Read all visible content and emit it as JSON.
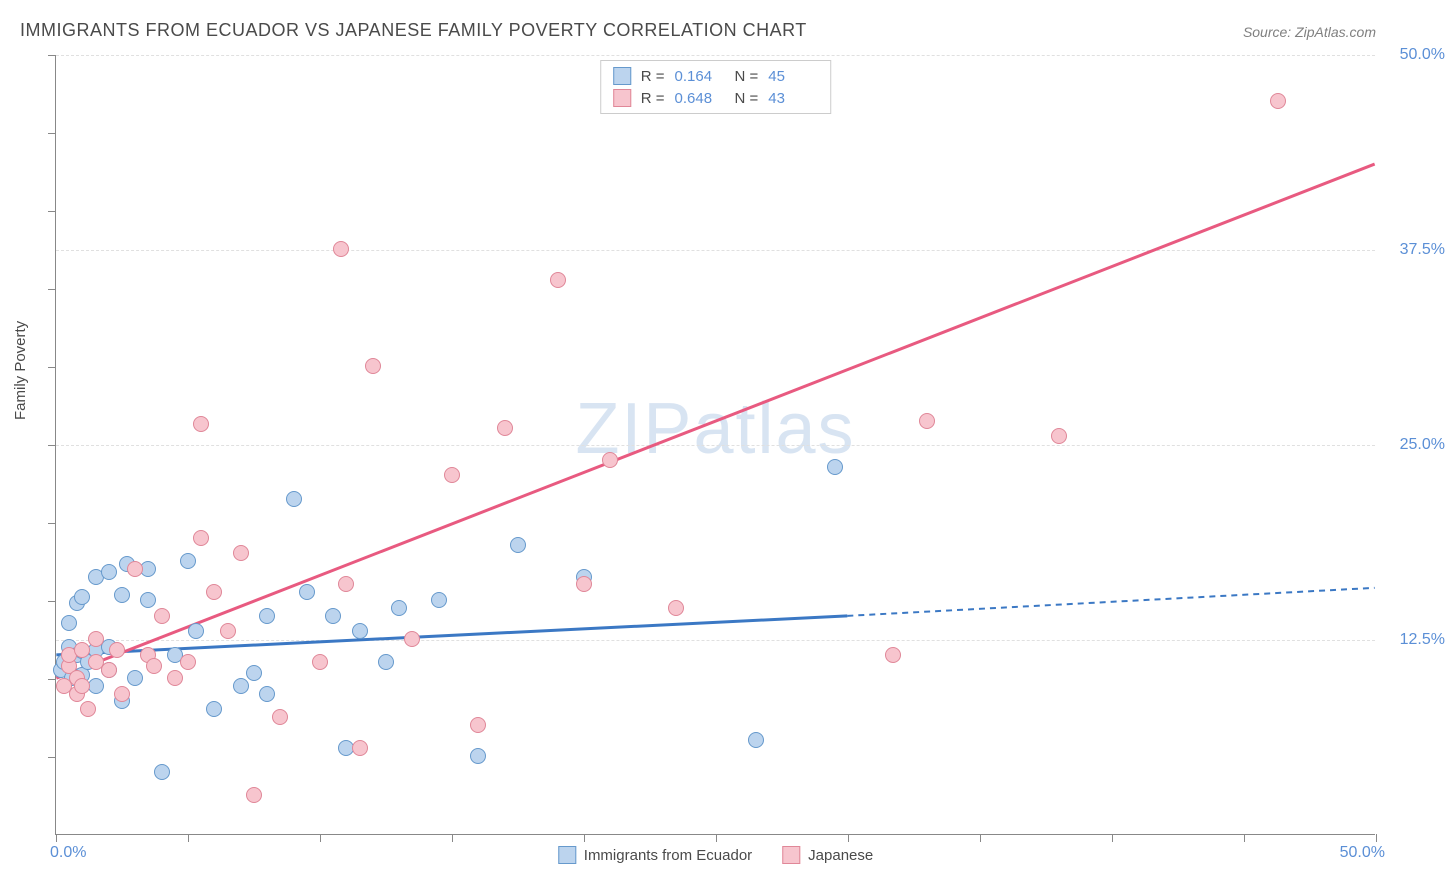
{
  "title": "IMMIGRANTS FROM ECUADOR VS JAPANESE FAMILY POVERTY CORRELATION CHART",
  "source": "Source: ZipAtlas.com",
  "ylabel": "Family Poverty",
  "watermark": "ZIPatlas",
  "chart": {
    "type": "scatter",
    "xlim": [
      0,
      50
    ],
    "ylim": [
      0,
      50
    ],
    "x_axis_labels": {
      "min": "0.0%",
      "max": "50.0%"
    },
    "y_ticks": [
      12.5,
      25.0,
      37.5,
      50.0
    ],
    "y_tick_labels": [
      "12.5%",
      "25.0%",
      "37.5%",
      "50.0%"
    ],
    "x_tick_positions": [
      0,
      5,
      10,
      15,
      20,
      25,
      30,
      35,
      40,
      45,
      50
    ],
    "y_minor_ticks": [
      5,
      10,
      15,
      20,
      25,
      30,
      35,
      40,
      45,
      50
    ],
    "grid_color": "#e0e0e0",
    "axis_color": "#888888",
    "background_color": "#ffffff",
    "marker_size": 16,
    "series": [
      {
        "name": "Immigrants from Ecuador",
        "fill": "#bcd4ee",
        "stroke": "#6699cc",
        "line_color": "#3b78c4",
        "line_width": 3,
        "R": "0.164",
        "N": "45",
        "regression": {
          "x1": 0,
          "y1": 11.5,
          "x2": 30,
          "y2": 14.0,
          "dash_x2": 50,
          "dash_y2": 15.8
        },
        "points": [
          [
            0.2,
            10.5
          ],
          [
            0.3,
            11.0
          ],
          [
            0.5,
            12.0
          ],
          [
            0.5,
            13.5
          ],
          [
            0.6,
            10.0
          ],
          [
            0.8,
            11.5
          ],
          [
            0.8,
            14.8
          ],
          [
            1.0,
            10.2
          ],
          [
            1.0,
            11.7
          ],
          [
            1.0,
            15.2
          ],
          [
            1.2,
            11.0
          ],
          [
            1.5,
            9.5
          ],
          [
            1.5,
            11.8
          ],
          [
            1.5,
            16.5
          ],
          [
            2.0,
            10.5
          ],
          [
            2.0,
            12.0
          ],
          [
            2.0,
            16.8
          ],
          [
            2.5,
            8.5
          ],
          [
            2.5,
            15.3
          ],
          [
            2.7,
            17.3
          ],
          [
            3.0,
            10.0
          ],
          [
            3.5,
            15.0
          ],
          [
            3.5,
            17.0
          ],
          [
            4.0,
            4.0
          ],
          [
            4.5,
            11.5
          ],
          [
            5.0,
            17.5
          ],
          [
            5.3,
            13.0
          ],
          [
            6.0,
            8.0
          ],
          [
            7.0,
            9.5
          ],
          [
            7.5,
            10.3
          ],
          [
            8.0,
            14.0
          ],
          [
            8.0,
            9.0
          ],
          [
            9.0,
            21.5
          ],
          [
            9.5,
            15.5
          ],
          [
            10.5,
            14.0
          ],
          [
            11.0,
            5.5
          ],
          [
            11.5,
            13.0
          ],
          [
            12.5,
            11.0
          ],
          [
            13.0,
            14.5
          ],
          [
            14.5,
            15.0
          ],
          [
            16.0,
            5.0
          ],
          [
            17.5,
            18.5
          ],
          [
            20.0,
            16.5
          ],
          [
            26.5,
            6.0
          ],
          [
            29.5,
            23.5
          ]
        ]
      },
      {
        "name": "Japanese",
        "fill": "#f7c5ce",
        "stroke": "#e08798",
        "line_color": "#e85a80",
        "line_width": 3,
        "R": "0.648",
        "N": "43",
        "regression": {
          "x1": 0,
          "y1": 10.0,
          "x2": 50,
          "y2": 43.0
        },
        "points": [
          [
            0.3,
            9.5
          ],
          [
            0.5,
            10.8
          ],
          [
            0.5,
            11.5
          ],
          [
            0.8,
            9.0
          ],
          [
            0.8,
            10.0
          ],
          [
            1.0,
            9.5
          ],
          [
            1.0,
            11.8
          ],
          [
            1.2,
            8.0
          ],
          [
            1.5,
            11.0
          ],
          [
            1.5,
            12.5
          ],
          [
            2.0,
            10.5
          ],
          [
            2.3,
            11.8
          ],
          [
            2.5,
            9.0
          ],
          [
            3.0,
            17.0
          ],
          [
            3.5,
            11.5
          ],
          [
            3.7,
            10.8
          ],
          [
            4.0,
            14.0
          ],
          [
            4.5,
            10.0
          ],
          [
            5.0,
            11.0
          ],
          [
            5.5,
            19.0
          ],
          [
            5.5,
            26.3
          ],
          [
            6.0,
            15.5
          ],
          [
            6.5,
            13.0
          ],
          [
            7.0,
            18.0
          ],
          [
            7.5,
            2.5
          ],
          [
            8.5,
            7.5
          ],
          [
            10.0,
            11.0
          ],
          [
            10.8,
            37.5
          ],
          [
            11.0,
            16.0
          ],
          [
            11.5,
            5.5
          ],
          [
            12.0,
            30.0
          ],
          [
            13.5,
            12.5
          ],
          [
            15.0,
            23.0
          ],
          [
            16.0,
            7.0
          ],
          [
            17.0,
            26.0
          ],
          [
            19.0,
            35.5
          ],
          [
            20.0,
            16.0
          ],
          [
            21.0,
            24.0
          ],
          [
            23.5,
            14.5
          ],
          [
            31.7,
            11.5
          ],
          [
            33.0,
            26.5
          ],
          [
            38.0,
            25.5
          ],
          [
            46.3,
            47.0
          ]
        ]
      }
    ]
  },
  "stats_labels": {
    "R": "R =",
    "N": "N ="
  }
}
